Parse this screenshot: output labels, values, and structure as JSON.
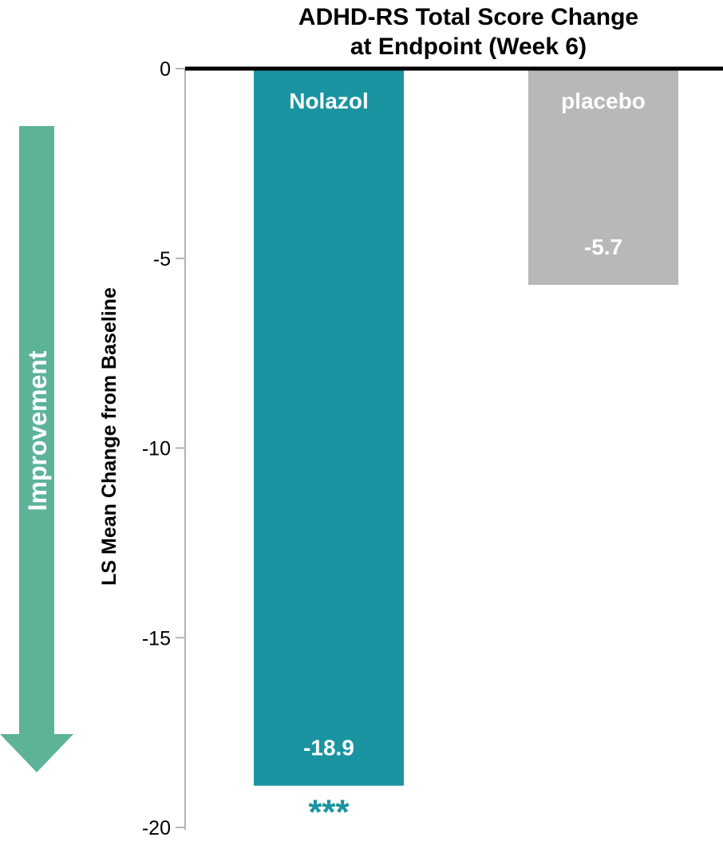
{
  "chart_data": {
    "type": "bar",
    "title": "ADHD-RS Total Score Change at Endpoint (Week 6)",
    "title_lines": [
      "ADHD-RS Total Score Change",
      "at Endpoint (Week 6)"
    ],
    "ylabel": "LS Mean Change from Baseline",
    "xlabel": "",
    "ylim": [
      -20,
      0
    ],
    "yticks": [
      0,
      -5,
      -10,
      -15,
      -20
    ],
    "ytick_labels": [
      "0",
      "-5",
      "-10",
      "-15",
      "-20"
    ],
    "grid": false,
    "categories": [
      "Nolazol",
      "placebo"
    ],
    "values": [
      -18.9,
      -5.7
    ],
    "value_labels": [
      "-18.9",
      "-5.7"
    ],
    "significance": [
      "***",
      ""
    ],
    "colors": [
      "#1b94a1",
      "#b8b8b8"
    ],
    "annotation": {
      "text": "Improvement",
      "direction": "down",
      "color": "#5db398"
    }
  }
}
